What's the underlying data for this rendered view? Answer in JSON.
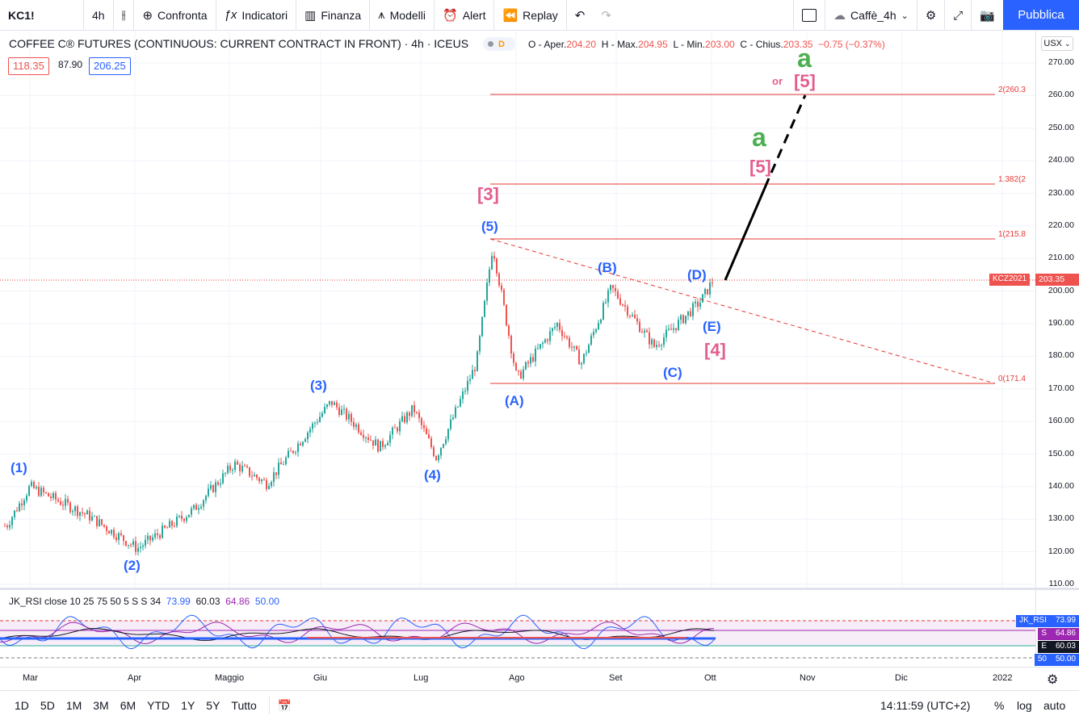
{
  "toolbar": {
    "symbol": "KC1!",
    "interval": "4h",
    "compare": "Confronta",
    "indicators": "Indicatori",
    "financials": "Finanza",
    "templates": "Modelli",
    "alert": "Alert",
    "replay": "Replay",
    "layout_name": "Caffè_4h",
    "publish": "Pubblica"
  },
  "legend": {
    "title": "COFFEE C® FUTURES (CONTINUOUS: CURRENT CONTRACT IN FRONT) · 4h · ICEUS",
    "pill": "D",
    "ohlc": {
      "open_label": "O - Aper.",
      "open": "204.20",
      "high_label": "H - Max.",
      "high": "204.95",
      "low_label": "L - Min.",
      "low": "203.00",
      "close_label": "C - Chius.",
      "close": "203.35",
      "change": "−0.75 (−0.37%)"
    },
    "values": [
      "118.35",
      "87.90",
      "206.25"
    ]
  },
  "currency": "USX",
  "price_axis": {
    "ticks": [
      "270.00",
      "260.00",
      "250.00",
      "240.00",
      "230.00",
      "220.00",
      "210.00",
      "200.00",
      "190.00",
      "180.00",
      "170.00",
      "160.00",
      "150.00",
      "140.00",
      "130.00",
      "120.00",
      "110.00"
    ],
    "last_symbol_tag": "KCZ2021",
    "last_price": "203.35"
  },
  "fib_labels": [
    "2(260.3",
    "1.382(2",
    "1(215.8",
    "0(171.4"
  ],
  "wave_labels": {
    "w1": "(1)",
    "w2": "(2)",
    "w3": "(3)",
    "w4": "(4)",
    "w5": "(5)",
    "wA": "(A)",
    "wB": "(B)",
    "wC": "(C)",
    "wD": "(D)",
    "wE": "(E)",
    "big3": "[3]",
    "big4": "[4]",
    "big5": "[5]",
    "big5b": "[5]",
    "a1": "a",
    "a2": "a",
    "or": "or"
  },
  "rsi": {
    "legend_title": "JK_RSI close 10 25 75 50 5 S S 34",
    "values": [
      "73.99",
      "60.03",
      "64.86",
      "50.00"
    ],
    "tag_name": "JK_RSI",
    "tags": [
      {
        "label": "JK_RSI",
        "value": "73.99",
        "color": "#2962ff"
      },
      {
        "label": "S",
        "value": "64.86",
        "color": "#9c27b0"
      },
      {
        "label": "E",
        "value": "60.03",
        "color": "#131722"
      },
      {
        "label": "50",
        "value": "50.00",
        "color": "#2962ff"
      }
    ]
  },
  "time_axis": [
    "Mar",
    "Apr",
    "Maggio",
    "Giu",
    "Lug",
    "Ago",
    "Set",
    "Ott",
    "Nov",
    "Dic",
    "2022"
  ],
  "bottom": {
    "ranges": [
      "1D",
      "5D",
      "1M",
      "3M",
      "6M",
      "YTD",
      "1Y",
      "5Y",
      "Tutto"
    ],
    "clock": "14:11:59 (UTC+2)",
    "percent": "%",
    "log": "log",
    "auto": "auto"
  },
  "colors": {
    "up": "#26a69a",
    "down": "#ef5350",
    "wave_blue": "#2962ff",
    "wave_pink": "#e35d8f",
    "wave_green": "#4caf50",
    "fib": "#e53935"
  },
  "chart_data": {
    "type": "candlestick",
    "ylim": [
      110,
      270
    ],
    "approx_close_path": [
      [
        "Feb-25",
        128
      ],
      [
        "Mar-05",
        140
      ],
      [
        "Mar-20",
        131
      ],
      [
        "Apr-02",
        121
      ],
      [
        "Apr-20",
        133
      ],
      [
        "May-10",
        147
      ],
      [
        "May-25",
        141
      ],
      [
        "Jun-05",
        155
      ],
      [
        "Jun-20",
        166
      ],
      [
        "Jul-05",
        152
      ],
      [
        "Jul-12",
        164
      ],
      [
        "Jul-18",
        149
      ],
      [
        "Jul-28",
        178
      ],
      [
        "Aug-02",
        214
      ],
      [
        "Aug-10",
        173
      ],
      [
        "Aug-25",
        190
      ],
      [
        "Sep-02",
        178
      ],
      [
        "Sep-10",
        201
      ],
      [
        "Sep-25",
        183
      ],
      [
        "Oct-01",
        197
      ],
      [
        "Oct-05",
        203.35
      ]
    ],
    "fib_levels": [
      {
        "ratio": "2",
        "price": 260.3
      },
      {
        "ratio": "1.382",
        "price": 232.8
      },
      {
        "ratio": "1",
        "price": 215.8
      },
      {
        "ratio": "0",
        "price": 171.4
      }
    ]
  }
}
